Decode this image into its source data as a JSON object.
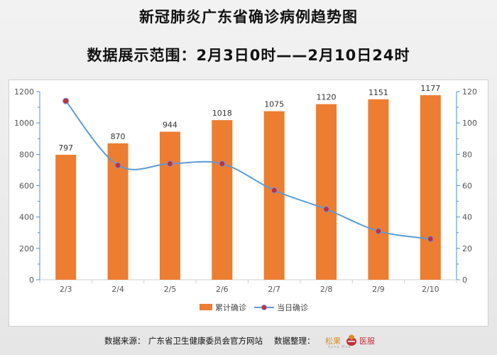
{
  "title": "新冠肺炎广东省确诊病例趋势图",
  "subtitle": "数据展示范围：2月3日0时——2月10日24时",
  "footer": {
    "source_label": "数据来源：",
    "source_value": "广东省卫生健康委员会官方网站",
    "organizer_label": "数据整理：",
    "logo_left": "松果",
    "logo_right": "医服",
    "logo_sub": "Song Med"
  },
  "colors": {
    "bar": "#ed7d31",
    "line": "#5b9bd5",
    "marker": "#c0303b"
  },
  "chart_data": {
    "type": "bar",
    "categories": [
      "2/3",
      "2/4",
      "2/5",
      "2/6",
      "2/7",
      "2/8",
      "2/9",
      "2/10"
    ],
    "series": [
      {
        "name": "累计确诊",
        "type": "bar",
        "axis": "left",
        "values": [
          797,
          870,
          944,
          1018,
          1075,
          1120,
          1151,
          1177
        ],
        "data_labels": true
      },
      {
        "name": "当日确诊",
        "type": "line",
        "axis": "right",
        "smooth": true,
        "values": [
          114,
          73,
          74,
          74,
          57,
          45,
          31,
          26
        ]
      }
    ],
    "y_left": {
      "min": 0,
      "max": 1200,
      "ticks": [
        0,
        200,
        400,
        600,
        800,
        1000,
        1200
      ]
    },
    "y_right": {
      "min": 0,
      "max": 120,
      "ticks": [
        0,
        20,
        40,
        60,
        80,
        100,
        120
      ]
    },
    "legend_position": "bottom-center",
    "grid": false
  }
}
